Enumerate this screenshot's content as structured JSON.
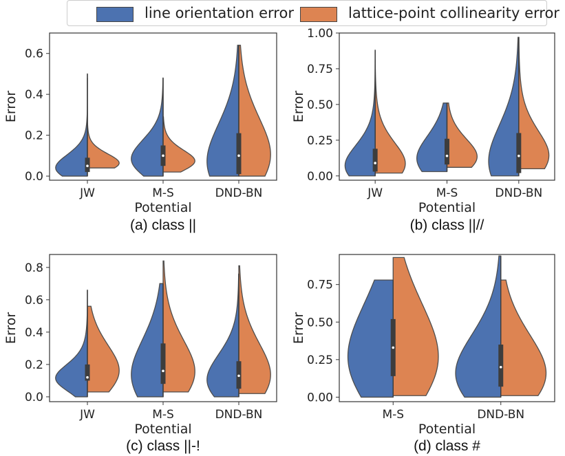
{
  "legend": {
    "items": [
      {
        "label": "line orientation error",
        "color": "#4c72b0"
      },
      {
        "label": "lattice-point collinearity error",
        "color": "#dd8452"
      }
    ]
  },
  "chart_data": [
    {
      "type": "violin",
      "caption": "(a) class ||",
      "xlabel": "Potential",
      "ylabel": "Error",
      "ylim": [
        -0.02,
        0.7
      ],
      "yticks": [
        0.0,
        0.2,
        0.4,
        0.6
      ],
      "ytick_labels": [
        "0.0",
        "0.2",
        "0.4",
        "0.6"
      ],
      "categories": [
        "JW",
        "M-S",
        "DND-BN"
      ],
      "series": [
        {
          "name": "line orientation error",
          "values": [
            {
              "min": 0.0,
              "q1": 0.02,
              "median": 0.05,
              "q3": 0.09,
              "max": 0.5
            },
            {
              "min": 0.0,
              "q1": 0.05,
              "median": 0.1,
              "q3": 0.15,
              "max": 0.48
            },
            {
              "min": 0.0,
              "q1": 0.01,
              "median": 0.1,
              "q3": 0.21,
              "max": 0.64
            }
          ]
        },
        {
          "name": "lattice-point collinearity error",
          "values": [
            {
              "min": 0.04,
              "q1": 0.05,
              "median": 0.07,
              "q3": 0.1,
              "max": 0.48
            },
            {
              "min": 0.02,
              "q1": 0.06,
              "median": 0.08,
              "q3": 0.12,
              "max": 0.29
            },
            {
              "min": 0.0,
              "q1": 0.05,
              "median": 0.13,
              "q3": 0.25,
              "max": 0.64
            }
          ]
        }
      ]
    },
    {
      "type": "violin",
      "caption": "(b) class ||//",
      "xlabel": "Potential",
      "ylabel": "Error",
      "ylim": [
        -0.03,
        1.0
      ],
      "yticks": [
        0.0,
        0.25,
        0.5,
        0.75,
        1.0
      ],
      "ytick_labels": [
        "0.00",
        "0.25",
        "0.50",
        "0.75",
        "1.00"
      ],
      "categories": [
        "JW",
        "M-S",
        "DND-BN"
      ],
      "series": [
        {
          "name": "line orientation error",
          "values": [
            {
              "min": 0.0,
              "q1": 0.03,
              "median": 0.09,
              "q3": 0.19,
              "max": 0.88
            },
            {
              "min": 0.03,
              "q1": 0.08,
              "median": 0.14,
              "q3": 0.26,
              "max": 0.51
            },
            {
              "min": 0.0,
              "q1": 0.02,
              "median": 0.14,
              "q3": 0.3,
              "max": 0.97
            }
          ]
        },
        {
          "name": "lattice-point collinearity error",
          "values": [
            {
              "min": 0.02,
              "q1": 0.05,
              "median": 0.1,
              "q3": 0.22,
              "max": 0.81
            },
            {
              "min": 0.06,
              "q1": 0.1,
              "median": 0.15,
              "q3": 0.24,
              "max": 0.51
            },
            {
              "min": 0.05,
              "q1": 0.1,
              "median": 0.16,
              "q3": 0.3,
              "max": 0.97
            }
          ]
        }
      ]
    },
    {
      "type": "violin",
      "caption": "(c) class ||-!",
      "xlabel": "Potential",
      "ylabel": "Error",
      "ylim": [
        -0.03,
        0.88
      ],
      "yticks": [
        0.0,
        0.2,
        0.4,
        0.6,
        0.8
      ],
      "ytick_labels": [
        "0.0",
        "0.2",
        "0.4",
        "0.6",
        "0.8"
      ],
      "categories": [
        "JW",
        "M-S",
        "DND-BN"
      ],
      "series": [
        {
          "name": "line orientation error",
          "values": [
            {
              "min": 0.0,
              "q1": 0.1,
              "median": 0.12,
              "q3": 0.2,
              "max": 0.66
            },
            {
              "min": 0.0,
              "q1": 0.08,
              "median": 0.16,
              "q3": 0.33,
              "max": 0.7
            },
            {
              "min": 0.0,
              "q1": 0.05,
              "median": 0.13,
              "q3": 0.22,
              "max": 0.76
            }
          ]
        },
        {
          "name": "lattice-point collinearity error",
          "values": [
            {
              "min": 0.03,
              "q1": 0.12,
              "median": 0.18,
              "q3": 0.3,
              "max": 0.56
            },
            {
              "min": 0.03,
              "q1": 0.1,
              "median": 0.18,
              "q3": 0.32,
              "max": 0.84
            },
            {
              "min": 0.02,
              "q1": 0.08,
              "median": 0.16,
              "q3": 0.3,
              "max": 0.81
            }
          ]
        }
      ]
    },
    {
      "type": "violin",
      "caption": "(d) class #",
      "xlabel": "Potential",
      "ylabel": "Error",
      "ylim": [
        -0.03,
        0.95
      ],
      "yticks": [
        0.0,
        0.25,
        0.5,
        0.75
      ],
      "ytick_labels": [
        "0.00",
        "0.25",
        "0.50",
        "0.75"
      ],
      "categories": [
        "M-S",
        "DND-BN"
      ],
      "series": [
        {
          "name": "line orientation error",
          "values": [
            {
              "min": 0.0,
              "q1": 0.14,
              "median": 0.33,
              "q3": 0.52,
              "max": 0.78
            },
            {
              "min": 0.0,
              "q1": 0.07,
              "median": 0.2,
              "q3": 0.35,
              "max": 0.94
            }
          ]
        },
        {
          "name": "lattice-point collinearity error",
          "values": [
            {
              "min": 0.01,
              "q1": 0.14,
              "median": 0.33,
              "q3": 0.52,
              "max": 0.93
            },
            {
              "min": 0.01,
              "q1": 0.07,
              "median": 0.2,
              "q3": 0.35,
              "max": 0.78
            }
          ]
        }
      ]
    }
  ]
}
